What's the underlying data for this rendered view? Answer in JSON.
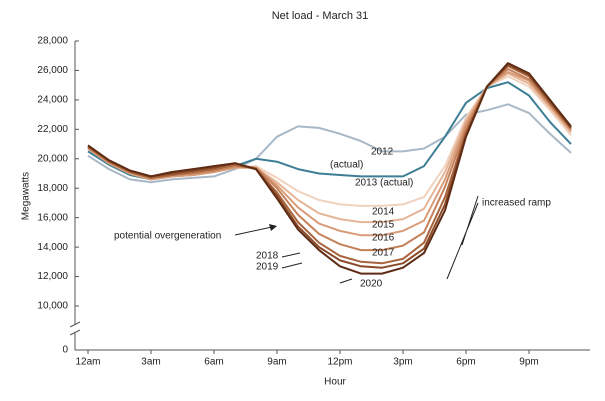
{
  "chart_data": {
    "type": "line",
    "title": "Net load - March 31",
    "x_label": "Hour",
    "y_label": "Megawatts",
    "x": [
      0,
      1,
      2,
      3,
      4,
      5,
      6,
      7,
      8,
      9,
      10,
      11,
      12,
      13,
      14,
      15,
      16,
      17,
      18,
      19,
      20,
      21,
      22,
      23
    ],
    "xlim": [
      0,
      23
    ],
    "xticks": [
      {
        "value": 0,
        "label": "12am"
      },
      {
        "value": 3,
        "label": "3am"
      },
      {
        "value": 6,
        "label": "6am"
      },
      {
        "value": 9,
        "label": "9am"
      },
      {
        "value": 12,
        "label": "12pm"
      },
      {
        "value": 15,
        "label": "3pm"
      },
      {
        "value": 18,
        "label": "6pm"
      },
      {
        "value": 21,
        "label": "9pm"
      }
    ],
    "ylim": [
      0,
      28000
    ],
    "yticks": [
      0,
      {
        "value": 10000,
        "label": "10,000"
      },
      {
        "value": 12000,
        "label": "12,000"
      },
      {
        "value": 14000,
        "label": "14,000"
      },
      {
        "value": 16000,
        "label": "16,000"
      },
      {
        "value": 18000,
        "label": "18,000"
      },
      {
        "value": 20000,
        "label": "20,000"
      },
      {
        "value": 22000,
        "label": "22,000"
      },
      {
        "value": 24000,
        "label": "24,000"
      },
      {
        "value": 26000,
        "label": "26,000"
      },
      {
        "value": 28000,
        "label": "28,000"
      }
    ],
    "axis_break": true,
    "grid": false,
    "series": [
      {
        "name": "2012",
        "color": "#a9b8c6",
        "values": [
          20200,
          19300,
          18600,
          18400,
          18600,
          18700,
          18800,
          19300,
          20000,
          21500,
          22200,
          22100,
          21700,
          21200,
          20500,
          20500,
          20700,
          21500,
          23000,
          23300,
          23700,
          23100,
          21700,
          20400
        ]
      },
      {
        "name": "2013 (actual)",
        "color": "#3e7e94",
        "values": [
          20500,
          19600,
          18900,
          18600,
          18800,
          18900,
          19100,
          19500,
          20000,
          19800,
          19300,
          19000,
          18900,
          18800,
          18800,
          18800,
          19500,
          21500,
          23800,
          24800,
          25200,
          24300,
          22500,
          21000
        ]
      },
      {
        "name": "2014",
        "color": "#f0d2bd",
        "values": [
          20700,
          19700,
          19000,
          18600,
          18800,
          18900,
          19100,
          19400,
          19500,
          18700,
          17800,
          17200,
          16900,
          16800,
          16800,
          16900,
          17400,
          19500,
          22800,
          24900,
          25600,
          24900,
          23300,
          21600
        ]
      },
      {
        "name": "2015",
        "color": "#e5b598",
        "values": [
          20700,
          19700,
          19000,
          18600,
          18800,
          18900,
          19100,
          19400,
          19400,
          18400,
          17200,
          16300,
          15900,
          15700,
          15700,
          15900,
          16600,
          19100,
          22600,
          24900,
          25800,
          25100,
          23500,
          21800
        ]
      },
      {
        "name": "2016",
        "color": "#d99c78",
        "values": [
          20700,
          19700,
          19000,
          18600,
          18800,
          18900,
          19100,
          19400,
          19400,
          18200,
          16700,
          15600,
          15100,
          14800,
          14800,
          15100,
          15800,
          18600,
          22400,
          24900,
          25900,
          25300,
          23600,
          21900
        ]
      },
      {
        "name": "2017",
        "color": "#c5825a",
        "values": [
          20800,
          19800,
          19100,
          18700,
          18900,
          19000,
          19200,
          19500,
          19400,
          18000,
          16200,
          14900,
          14200,
          13800,
          13800,
          14100,
          15000,
          18100,
          22100,
          24900,
          26100,
          25400,
          23700,
          22000
        ]
      },
      {
        "name": "2018",
        "color": "#a8643d",
        "values": [
          20800,
          19800,
          19100,
          18700,
          18900,
          19100,
          19300,
          19600,
          19300,
          17700,
          15700,
          14300,
          13400,
          13000,
          12900,
          13200,
          14300,
          17400,
          21800,
          24900,
          26300,
          25600,
          23800,
          22100
        ]
      },
      {
        "name": "2019",
        "color": "#8a4a28",
        "values": [
          20900,
          19900,
          19200,
          18800,
          19000,
          19200,
          19400,
          19700,
          19300,
          17500,
          15400,
          14000,
          13100,
          12700,
          12600,
          12900,
          13900,
          16900,
          21600,
          24900,
          26400,
          25700,
          23900,
          22100
        ]
      },
      {
        "name": "2020",
        "color": "#5e2c14",
        "values": [
          20900,
          19900,
          19200,
          18800,
          19100,
          19300,
          19500,
          19700,
          19300,
          17300,
          15200,
          13800,
          12700,
          12200,
          12200,
          12600,
          13600,
          16500,
          21500,
          24900,
          26500,
          25800,
          24000,
          22200
        ]
      }
    ],
    "annotations": [
      "(actual)",
      "potential overgeneration",
      "increased ramp"
    ]
  }
}
